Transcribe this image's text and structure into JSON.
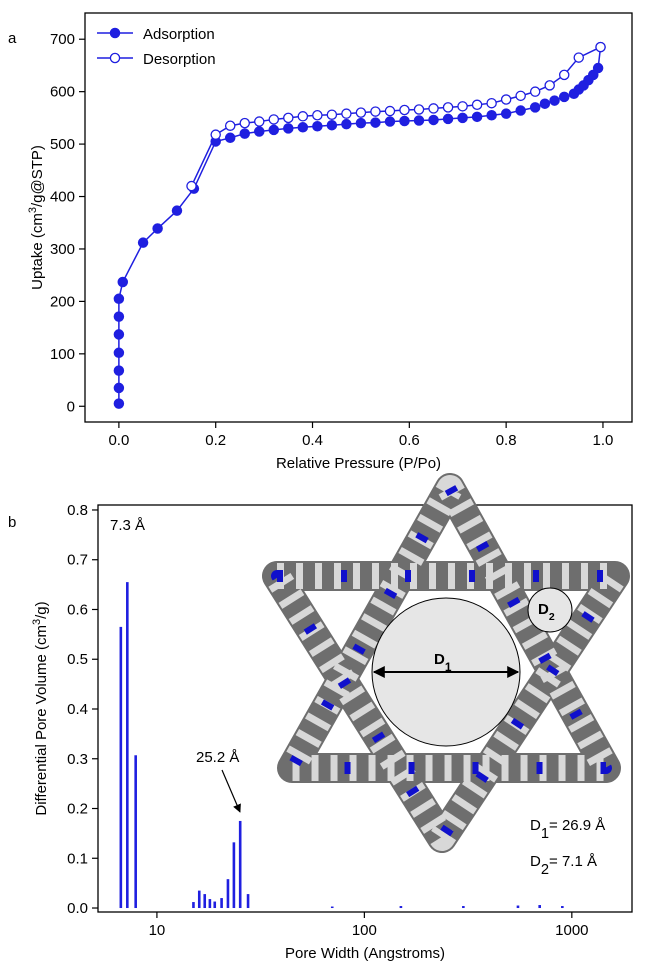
{
  "chart_data": [
    {
      "type": "line",
      "panel": "a",
      "xlabel": "Relative Pressure (P/Po)",
      "ylabel": {
        "before": "Uptake (cm",
        "sup": "3",
        "after": "/g@STP)"
      },
      "xlim": [
        -0.07,
        1.06
      ],
      "ylim": [
        -30,
        750
      ],
      "xticks": [
        {
          "value": 0,
          "label": "0.0"
        },
        {
          "value": 0.2,
          "label": "0.2"
        },
        {
          "value": 0.4,
          "label": "0.4"
        },
        {
          "value": 0.6,
          "label": "0.6"
        },
        {
          "value": 0.8,
          "label": "0.8"
        },
        {
          "value": 1,
          "label": "1.0"
        }
      ],
      "yticks": [
        0,
        100,
        200,
        300,
        400,
        500,
        600,
        700
      ],
      "legend": "upper-left",
      "series": [
        {
          "name": "Adsorption",
          "color": "#1f1fe0",
          "marker": "filled",
          "x": [
            0.0,
            0.0,
            0.0,
            0.0,
            0.0,
            0.0,
            0.0,
            0.008,
            0.05,
            0.08,
            0.12,
            0.155,
            0.2,
            0.23,
            0.26,
            0.29,
            0.32,
            0.35,
            0.38,
            0.41,
            0.44,
            0.47,
            0.5,
            0.53,
            0.56,
            0.59,
            0.62,
            0.65,
            0.68,
            0.71,
            0.74,
            0.77,
            0.8,
            0.83,
            0.86,
            0.88,
            0.9,
            0.92,
            0.94,
            0.95,
            0.96,
            0.97,
            0.98,
            0.99,
            0.995
          ],
          "values": [
            5,
            35,
            68,
            102,
            137,
            171,
            205,
            237,
            312,
            339,
            373,
            415,
            505,
            512,
            520,
            524,
            527,
            530,
            532,
            534,
            536,
            538,
            540,
            541,
            543,
            544,
            545,
            546,
            548,
            550,
            552,
            555,
            558,
            564,
            570,
            577,
            583,
            590,
            596,
            604,
            612,
            622,
            632,
            645,
            685
          ]
        },
        {
          "name": "Desorption",
          "color": "#1f1fe0",
          "marker": "open",
          "x": [
            0.995,
            0.95,
            0.92,
            0.89,
            0.86,
            0.83,
            0.8,
            0.77,
            0.74,
            0.71,
            0.68,
            0.65,
            0.62,
            0.59,
            0.56,
            0.53,
            0.5,
            0.47,
            0.44,
            0.41,
            0.38,
            0.35,
            0.32,
            0.29,
            0.26,
            0.23,
            0.2,
            0.15
          ],
          "values": [
            685,
            665,
            632,
            612,
            600,
            592,
            585,
            578,
            575,
            572,
            570,
            568,
            566,
            565,
            563,
            562,
            560,
            558,
            556,
            555,
            553,
            550,
            547,
            543,
            540,
            535,
            518,
            420
          ]
        }
      ]
    },
    {
      "type": "bar",
      "panel": "b",
      "xlog": true,
      "color": "#1f1fe0",
      "xlabel": "Pore Width (Angstroms)",
      "ylabel": {
        "before": "Differential Pore Volume (cm",
        "sup": "3",
        "after": "/g)"
      },
      "xlim": [
        5.2,
        1950
      ],
      "ylim": [
        -0.008,
        0.81
      ],
      "xticks": [
        10,
        100,
        1000
      ],
      "yticks": [
        {
          "value": 0,
          "label": "0.0"
        },
        {
          "value": 0.1,
          "label": "0.1"
        },
        {
          "value": 0.2,
          "label": "0.2"
        },
        {
          "value": 0.3,
          "label": "0.3"
        },
        {
          "value": 0.4,
          "label": "0.4"
        },
        {
          "value": 0.5,
          "label": "0.5"
        },
        {
          "value": 0.6,
          "label": "0.6"
        },
        {
          "value": 0.7,
          "label": "0.7"
        },
        {
          "value": 0.8,
          "label": "0.8"
        }
      ],
      "x": [
        6.7,
        7.2,
        7.9,
        15,
        16,
        17,
        18,
        19,
        20.5,
        22,
        23.5,
        25.2,
        27.5,
        70,
        150,
        300,
        550,
        700,
        900
      ],
      "values": [
        0.565,
        0.655,
        0.307,
        0.012,
        0.035,
        0.028,
        0.018,
        0.013,
        0.02,
        0.058,
        0.132,
        0.175,
        0.028,
        0.003,
        0.004,
        0.004,
        0.005,
        0.006,
        0.004
      ],
      "annotations": [
        {
          "text": "7.3 Å"
        },
        {
          "text": "25.2 Å"
        }
      ],
      "inset": {
        "d1_label": {
          "text": "D",
          "sub": "1"
        },
        "d2_label": {
          "text": "D",
          "sub": "2"
        },
        "d1_value": {
          "text": "D",
          "sub": "1",
          "rest": "= 26.9 Å"
        },
        "d2_value": {
          "text": "D",
          "sub": "2",
          "rest": "= 7.1 Å"
        }
      }
    }
  ]
}
